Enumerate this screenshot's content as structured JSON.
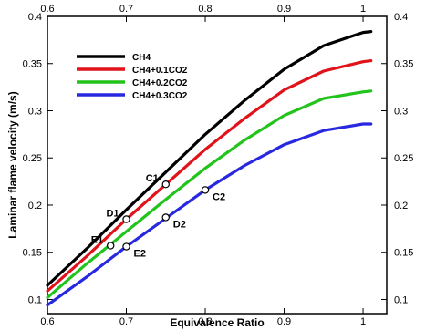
{
  "chart_data": {
    "type": "line",
    "title": "",
    "xlabel": "Equivalence Ratio",
    "ylabel": "Laminar flame velocity (m/s)",
    "xlim": [
      0.6,
      1.03
    ],
    "ylim": [
      0.085,
      0.4
    ],
    "x_ticks": [
      0.6,
      0.7,
      0.8,
      0.9,
      1
    ],
    "x_tick_labels": [
      "0.6",
      "0.7",
      "0.8",
      "0.9",
      "1"
    ],
    "y_ticks": [
      0.1,
      0.15,
      0.2,
      0.25,
      0.3,
      0.35,
      0.4
    ],
    "y_tick_labels": [
      "0.1",
      "0.15",
      "0.2",
      "0.25",
      "0.3",
      "0.35",
      "0.4"
    ],
    "grid": false,
    "legend_position": "top-left",
    "series": [
      {
        "name": "CH4",
        "color": "#000000",
        "x": [
          0.6,
          0.65,
          0.7,
          0.75,
          0.8,
          0.85,
          0.9,
          0.95,
          1.0,
          1.01
        ],
        "y": [
          0.115,
          0.154,
          0.195,
          0.235,
          0.275,
          0.311,
          0.344,
          0.369,
          0.383,
          0.384
        ]
      },
      {
        "name": "CH4+0.1CO2",
        "color": "#e0121a",
        "x": [
          0.6,
          0.65,
          0.7,
          0.75,
          0.8,
          0.85,
          0.9,
          0.95,
          1.0,
          1.01
        ],
        "y": [
          0.109,
          0.146,
          0.185,
          0.222,
          0.259,
          0.292,
          0.322,
          0.342,
          0.352,
          0.353
        ]
      },
      {
        "name": "CH4+0.2CO2",
        "color": "#22c41c",
        "x": [
          0.6,
          0.65,
          0.7,
          0.75,
          0.8,
          0.85,
          0.9,
          0.95,
          1.0,
          1.01
        ],
        "y": [
          0.102,
          0.138,
          0.172,
          0.206,
          0.239,
          0.269,
          0.295,
          0.313,
          0.32,
          0.321
        ]
      },
      {
        "name": "CH4+0.3CO2",
        "color": "#2828e0",
        "x": [
          0.6,
          0.65,
          0.7,
          0.75,
          0.8,
          0.85,
          0.9,
          0.95,
          1.0,
          1.01
        ],
        "y": [
          0.094,
          0.124,
          0.156,
          0.186,
          0.216,
          0.242,
          0.264,
          0.279,
          0.286,
          0.286
        ]
      }
    ],
    "annotations": [
      {
        "label": "C1",
        "x": 0.75,
        "y": 0.222,
        "label_side": "left"
      },
      {
        "label": "C2",
        "x": 0.8,
        "y": 0.216,
        "label_side": "right"
      },
      {
        "label": "D1",
        "x": 0.7,
        "y": 0.185,
        "label_side": "left"
      },
      {
        "label": "D2",
        "x": 0.75,
        "y": 0.187,
        "label_side": "right"
      },
      {
        "label": "E1",
        "x": 0.68,
        "y": 0.157,
        "label_side": "left"
      },
      {
        "label": "E2",
        "x": 0.7,
        "y": 0.156,
        "label_side": "right"
      }
    ]
  }
}
